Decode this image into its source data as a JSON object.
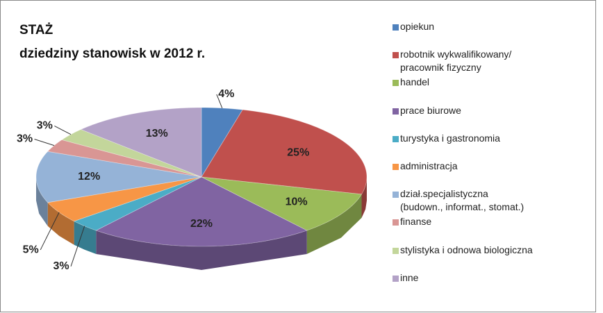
{
  "chart_data": {
    "type": "pie3d",
    "title": "STAŻ",
    "subtitle": "dziedziny stanowisk w 2012 r.",
    "categories": [
      "opiekun",
      "robotnik wykwalifikowany/\npracownik fizyczny",
      "handel",
      "prace biurowe",
      "turystyka i gastronomia",
      "administracja",
      "dział.specjalistyczna\n(budown., informat., stomat.)",
      "finanse",
      "stylistyka i odnowa biologiczna",
      "inne"
    ],
    "values": [
      4,
      25,
      10,
      22,
      3,
      5,
      12,
      3,
      3,
      13
    ],
    "value_labels": [
      "4%",
      "25%",
      "10%",
      "22%",
      "3%",
      "5%",
      "12%",
      "3%",
      "3%",
      "13%"
    ],
    "colors": [
      "#4f81bd",
      "#c0504d",
      "#9bbb59",
      "#8064a2",
      "#4bacc6",
      "#f79646",
      "#95b3d7",
      "#d99694",
      "#c3d69b",
      "#b3a2c7"
    ],
    "legend": "right"
  }
}
